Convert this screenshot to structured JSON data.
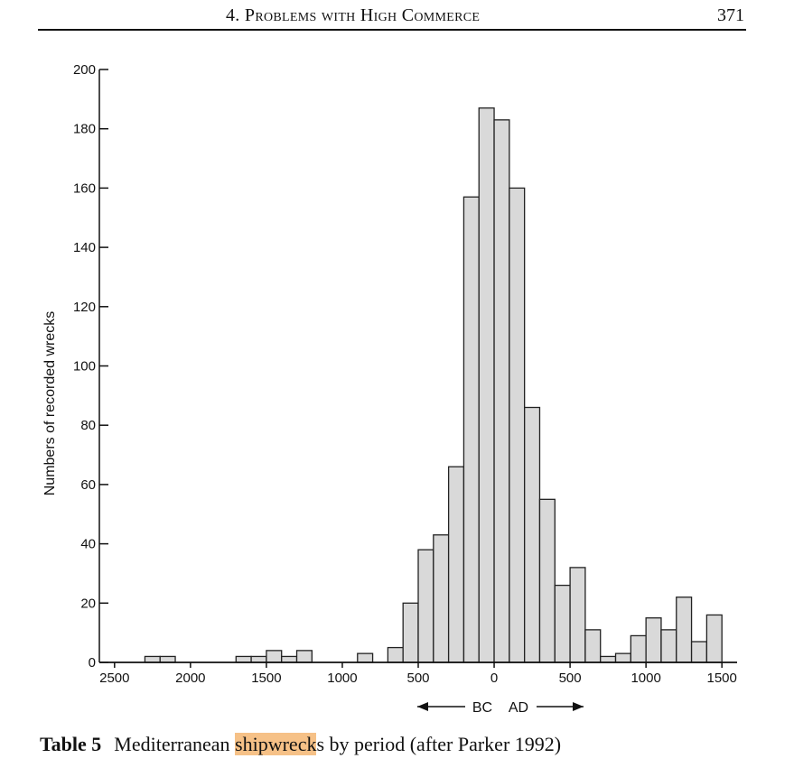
{
  "header": {
    "title": "4. Problems with High Commerce",
    "page_number": "371"
  },
  "caption": {
    "label": "Table 5",
    "text_before": "Mediterranean ",
    "highlight": "shipwreck",
    "text_after": "s by period (after Parker 1992)"
  },
  "colors": {
    "bar_fill": "#d9d9d9",
    "bar_stroke": "#222222",
    "highlight": "#f6c187"
  },
  "chart_data": {
    "type": "bar",
    "title": "",
    "xlabel": "",
    "ylabel": "Numbers of recorded wrecks",
    "ylim": [
      0,
      200
    ],
    "y_ticks": [
      0,
      20,
      40,
      60,
      80,
      100,
      120,
      140,
      160,
      180,
      200
    ],
    "x_range": [
      -2600,
      1600
    ],
    "x_ticks": [
      {
        "value": -2500,
        "label": "2500"
      },
      {
        "value": -2000,
        "label": "2000"
      },
      {
        "value": -1500,
        "label": "1500"
      },
      {
        "value": -1000,
        "label": "1000"
      },
      {
        "value": -500,
        "label": "500"
      },
      {
        "value": 0,
        "label": "0"
      },
      {
        "value": 500,
        "label": "500"
      },
      {
        "value": 1000,
        "label": "1000"
      },
      {
        "value": 1500,
        "label": "1500"
      }
    ],
    "era_labels": {
      "bc": "BC",
      "ad": "AD"
    },
    "bin_width": 100,
    "bars": [
      {
        "start": -2300,
        "value": 2
      },
      {
        "start": -2200,
        "value": 2
      },
      {
        "start": -1700,
        "value": 2
      },
      {
        "start": -1600,
        "value": 2
      },
      {
        "start": -1500,
        "value": 4
      },
      {
        "start": -1400,
        "value": 2
      },
      {
        "start": -1300,
        "value": 4
      },
      {
        "start": -900,
        "value": 3
      },
      {
        "start": -700,
        "value": 5
      },
      {
        "start": -600,
        "value": 20
      },
      {
        "start": -500,
        "value": 38
      },
      {
        "start": -400,
        "value": 43
      },
      {
        "start": -300,
        "value": 66
      },
      {
        "start": -200,
        "value": 157
      },
      {
        "start": -100,
        "value": 187
      },
      {
        "start": 0,
        "value": 183
      },
      {
        "start": 100,
        "value": 160
      },
      {
        "start": 200,
        "value": 86
      },
      {
        "start": 300,
        "value": 55
      },
      {
        "start": 400,
        "value": 26
      },
      {
        "start": 500,
        "value": 32
      },
      {
        "start": 600,
        "value": 11
      },
      {
        "start": 700,
        "value": 2
      },
      {
        "start": 800,
        "value": 3
      },
      {
        "start": 900,
        "value": 9
      },
      {
        "start": 1000,
        "value": 15
      },
      {
        "start": 1100,
        "value": 11
      },
      {
        "start": 1200,
        "value": 22
      },
      {
        "start": 1300,
        "value": 7
      },
      {
        "start": 1400,
        "value": 16
      }
    ],
    "grid": false,
    "legend": "none"
  }
}
